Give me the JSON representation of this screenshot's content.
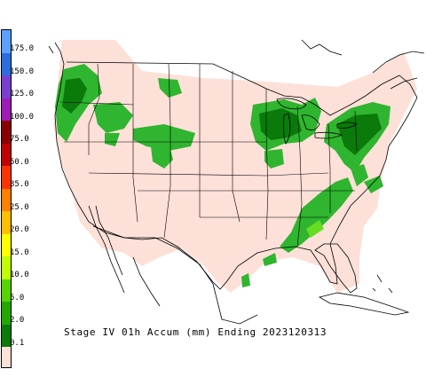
{
  "caption": "Stage IV 01h Accum (mm) Ending 2023120313",
  "legend": [
    {
      "label": "175.0",
      "color": "#5aa0ff"
    },
    {
      "label": "150.0",
      "color": "#2a6ee0"
    },
    {
      "label": "125.0",
      "color": "#7a3fd0"
    },
    {
      "label": "100.0",
      "color": "#a01ab4"
    },
    {
      "label": "75.0",
      "color": "#8a0000"
    },
    {
      "label": "50.0",
      "color": "#c00000"
    },
    {
      "label": "35.0",
      "color": "#ff3300"
    },
    {
      "label": "25.0",
      "color": "#ff7f00"
    },
    {
      "label": "20.0",
      "color": "#ffbf00"
    },
    {
      "label": "15.0",
      "color": "#ffff00"
    },
    {
      "label": "10.0",
      "color": "#bfff00"
    },
    {
      "label": "5.0",
      "color": "#55d400"
    },
    {
      "label": "2.0",
      "color": "#22a800"
    },
    {
      "label": "0.1",
      "color": "#0a7a0a"
    }
  ],
  "colors": {
    "land": "#fde0d8",
    "outline": "#000000",
    "precip_light": "#2fb52f",
    "precip_dark": "#0a7a0a",
    "precip_bright": "#66dd22"
  }
}
